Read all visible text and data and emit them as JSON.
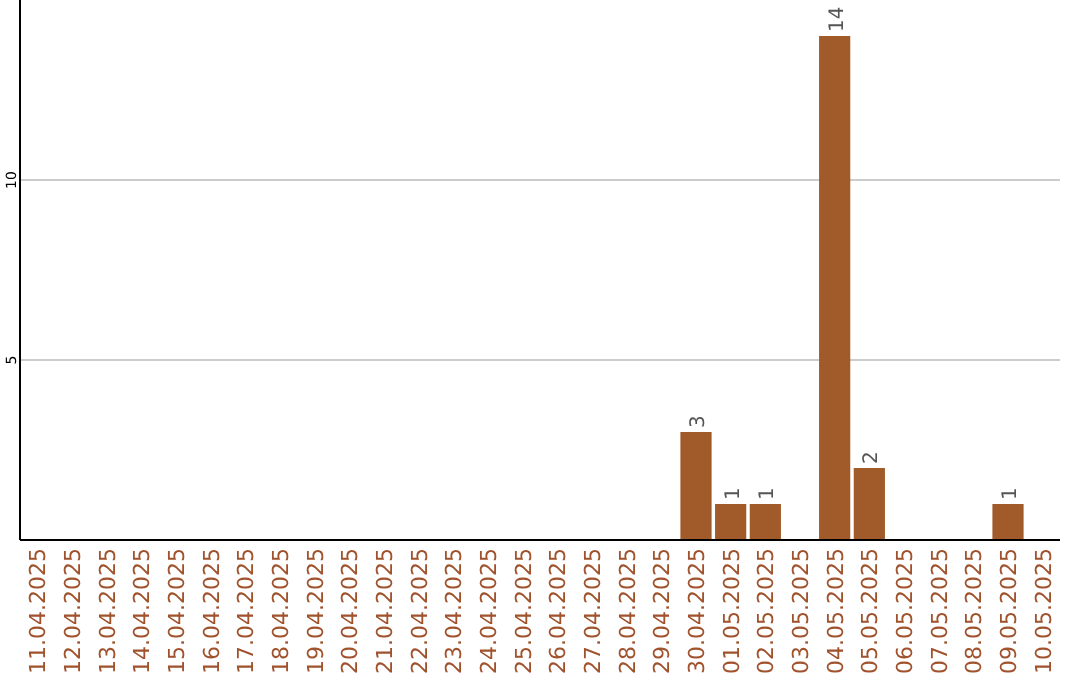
{
  "chart_data": {
    "type": "bar",
    "categories": [
      "11.04.2025",
      "12.04.2025",
      "13.04.2025",
      "14.04.2025",
      "15.04.2025",
      "16.04.2025",
      "17.04.2025",
      "18.04.2025",
      "19.04.2025",
      "20.04.2025",
      "21.04.2025",
      "22.04.2025",
      "23.04.2025",
      "24.04.2025",
      "25.04.2025",
      "26.04.2025",
      "27.04.2025",
      "28.04.2025",
      "29.04.2025",
      "30.04.2025",
      "01.05.2025",
      "02.05.2025",
      "03.05.2025",
      "04.05.2025",
      "05.05.2025",
      "06.05.2025",
      "07.05.2025",
      "08.05.2025",
      "09.05.2025",
      "10.05.2025"
    ],
    "values": [
      0,
      0,
      0,
      0,
      0,
      0,
      0,
      0,
      0,
      0,
      0,
      0,
      0,
      0,
      0,
      0,
      0,
      0,
      0,
      3,
      1,
      1,
      0,
      14,
      2,
      0,
      0,
      0,
      1,
      0
    ],
    "value_labels": [
      null,
      null,
      null,
      null,
      null,
      null,
      null,
      null,
      null,
      null,
      null,
      null,
      null,
      null,
      null,
      null,
      null,
      null,
      null,
      "3",
      "1",
      "1",
      null,
      "14",
      "2",
      null,
      null,
      null,
      "1",
      null
    ],
    "color": "#a15a2a",
    "ylim": [
      0,
      15
    ],
    "yticks": [
      5,
      10
    ],
    "grid": "y"
  }
}
